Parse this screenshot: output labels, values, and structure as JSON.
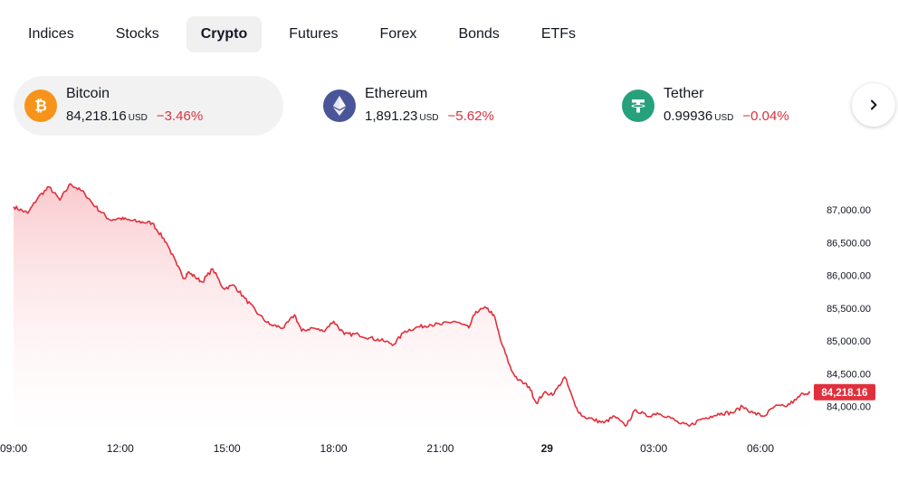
{
  "tabs": [
    {
      "label": "Indices",
      "active": false
    },
    {
      "label": "Stocks",
      "active": false
    },
    {
      "label": "Crypto",
      "active": true
    },
    {
      "label": "Futures",
      "active": false
    },
    {
      "label": "Forex",
      "active": false
    },
    {
      "label": "Bonds",
      "active": false
    },
    {
      "label": "ETFs",
      "active": false
    }
  ],
  "assets": [
    {
      "name": "Bitcoin",
      "price": "84,218.16",
      "currency": "USD",
      "change": "−3.46%",
      "icon": "bitcoin-icon",
      "color": "#f7931a",
      "active": true
    },
    {
      "name": "Ethereum",
      "price": "1,891.23",
      "currency": "USD",
      "change": "−5.62%",
      "icon": "ethereum-icon",
      "color": "#4a5599",
      "active": false
    },
    {
      "name": "Tether",
      "price": "0.99936",
      "currency": "USD",
      "change": "−0.04%",
      "icon": "tether-icon",
      "color": "#26a17b",
      "active": false
    }
  ],
  "next_button": {
    "icon": "chevron-right-icon"
  },
  "colors": {
    "line": "#e0303c",
    "fill_top": "#f8b8bd",
    "fill_bottom": "#ffffff",
    "change_negative": "#d9323c"
  },
  "chart_data": {
    "type": "area",
    "symbol": "Bitcoin",
    "y_ticks": [
      "87,000.00",
      "86,500.00",
      "86,000.00",
      "85,500.00",
      "85,000.00",
      "84,500.00",
      "84,000.00"
    ],
    "y_tick_values": [
      87000,
      86500,
      86000,
      85500,
      85000,
      84500,
      84000
    ],
    "ylim": [
      83580,
      87720
    ],
    "x_ticks": [
      {
        "label": "09:00",
        "h": 0,
        "bold": false
      },
      {
        "label": "12:00",
        "h": 3,
        "bold": false
      },
      {
        "label": "15:00",
        "h": 6,
        "bold": false
      },
      {
        "label": "18:00",
        "h": 9,
        "bold": false
      },
      {
        "label": "21:00",
        "h": 12,
        "bold": false
      },
      {
        "label": "29",
        "h": 15,
        "bold": true
      },
      {
        "label": "03:00",
        "h": 18,
        "bold": false
      },
      {
        "label": "06:00",
        "h": 21,
        "bold": false
      }
    ],
    "x_unit": "hours since 09:00",
    "xlim": [
      0,
      22.4
    ],
    "last_value_label": "84,218.16",
    "x": [
      0,
      0.4,
      0.7,
      1.0,
      1.3,
      1.6,
      2.0,
      2.3,
      2.7,
      3.0,
      3.2,
      3.5,
      3.9,
      4.3,
      4.6,
      4.8,
      4.9,
      5.1,
      5.3,
      5.6,
      5.9,
      6.2,
      6.5,
      6.9,
      7.2,
      7.6,
      7.9,
      8.1,
      8.4,
      8.7,
      9.0,
      9.3,
      9.7,
      10.0,
      10.4,
      10.7,
      11.0,
      11.3,
      11.7,
      12.0,
      12.4,
      12.8,
      13.0,
      13.3,
      13.5,
      13.7,
      14.0,
      14.2,
      14.5,
      14.7,
      14.9,
      15.2,
      15.5,
      15.8,
      16.0,
      16.3,
      16.6,
      16.9,
      17.2,
      17.5,
      17.8,
      18.1,
      18.4,
      18.7,
      19.0,
      19.3,
      19.6,
      19.9,
      20.2,
      20.5,
      20.8,
      21.1,
      21.4,
      21.7,
      22.0,
      22.2,
      22.4
    ],
    "y": [
      87050,
      86950,
      87200,
      87350,
      87150,
      87400,
      87250,
      87050,
      86850,
      86870,
      86850,
      86820,
      86800,
      86500,
      86150,
      85950,
      86050,
      85980,
      85900,
      86100,
      85800,
      85850,
      85650,
      85400,
      85250,
      85200,
      85400,
      85150,
      85200,
      85150,
      85300,
      85100,
      85100,
      85050,
      85000,
      84950,
      85150,
      85200,
      85250,
      85250,
      85300,
      85200,
      85450,
      85500,
      85400,
      85000,
      84550,
      84400,
      84300,
      84050,
      84200,
      84200,
      84450,
      84000,
      83850,
      83800,
      83750,
      83850,
      83700,
      83950,
      83850,
      83900,
      83850,
      83750,
      83700,
      83800,
      83850,
      83900,
      83900,
      84000,
      83900,
      83850,
      84000,
      84000,
      84100,
      84200,
      84218.16
    ]
  }
}
